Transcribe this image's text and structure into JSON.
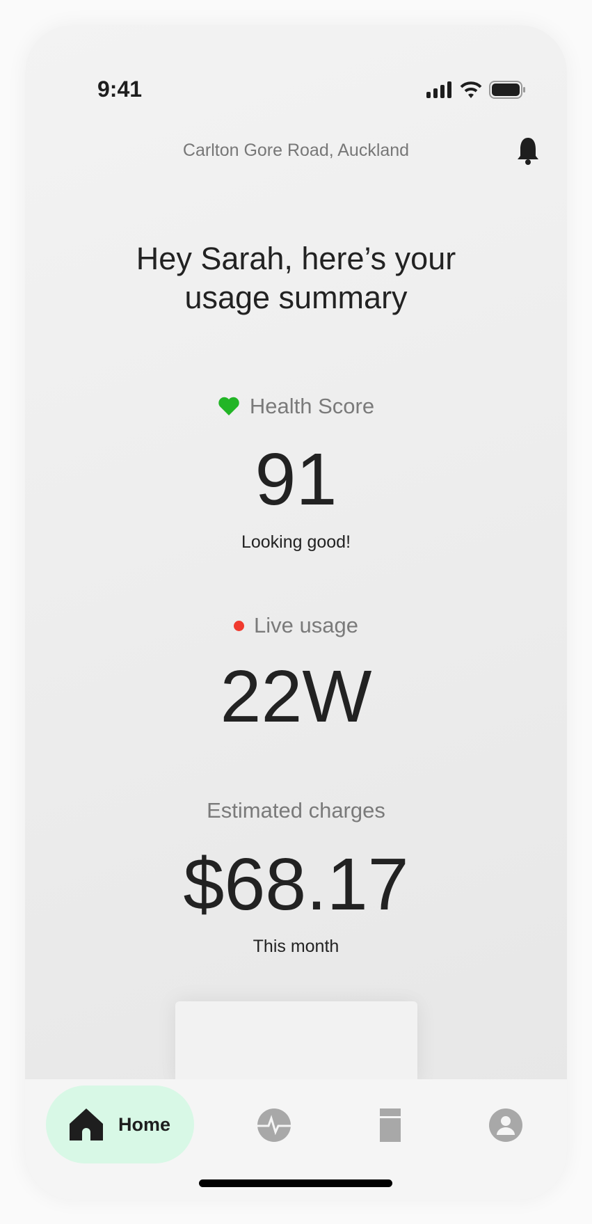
{
  "status_bar": {
    "time": "9:41"
  },
  "header": {
    "location": "Carlton Gore Road, Auckland"
  },
  "greeting": {
    "line1": "Hey Sarah, here’s your",
    "line2": "usage summary"
  },
  "health": {
    "label": "Health Score",
    "value": "91",
    "caption": "Looking good!",
    "icon_color": "#22b526"
  },
  "live": {
    "label": "Live usage",
    "value": "22W",
    "dot_color": "#f03a2e"
  },
  "charges": {
    "label": "Estimated charges",
    "value": "$68.17",
    "caption": "This month"
  },
  "nav": {
    "items": [
      {
        "label": "Home",
        "icon": "home-icon",
        "active": true
      },
      {
        "icon": "activity-icon"
      },
      {
        "icon": "device-icon"
      },
      {
        "icon": "profile-icon"
      }
    ],
    "active_bg": "#d8f8e6"
  }
}
